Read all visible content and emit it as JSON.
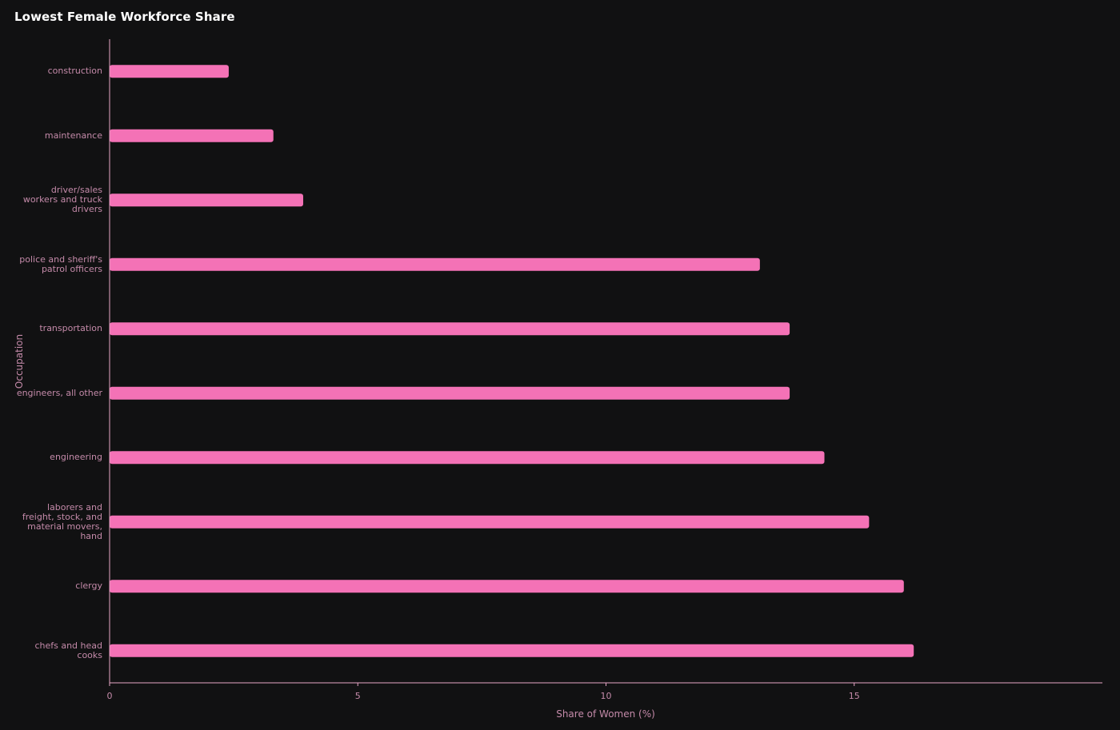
{
  "chart_data": {
    "type": "bar",
    "orientation": "horizontal",
    "title": "Lowest Female Workforce Share",
    "xlabel": "Share of Women (%)",
    "ylabel": "Occupation",
    "categories": [
      "construction",
      "maintenance",
      "driver/sales workers and truck drivers",
      "police and sheriff's patrol officers",
      "transportation",
      "engineers, all other",
      "engineering",
      "laborers and freight, stock, and material movers, hand",
      "clergy",
      "chefs and head cooks"
    ],
    "values": [
      2.4,
      3.3,
      3.9,
      13.1,
      13.7,
      13.7,
      14.4,
      15.3,
      16.0,
      16.2
    ],
    "xlim": [
      0,
      20
    ],
    "xticks": [
      "0",
      "5",
      "10",
      "15"
    ],
    "grid": false,
    "bar_color": "#f472b6",
    "axis_color": "#e8a6c6",
    "text_color": "#c48aa9",
    "background": "#111112"
  }
}
